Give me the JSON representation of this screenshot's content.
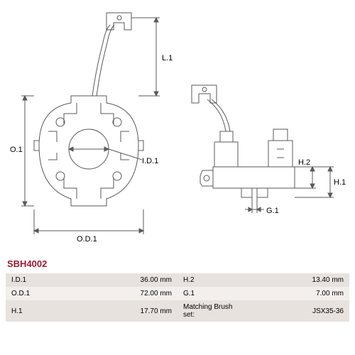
{
  "part_number": "SBH4002",
  "part_number_color": "#a01830",
  "drawing_stroke": "#5a5a5a",
  "line_width": 1,
  "labels": {
    "L1": "L.1",
    "O1": "O.1",
    "ID1": "I.D.1",
    "OD1": "O.D.1",
    "H2": "H.2",
    "H1": "H.1",
    "G1": "G.1"
  },
  "spec_rows": [
    {
      "l_label": "I.D.1",
      "l_value": "36.00 mm",
      "r_label": "H.2",
      "r_value": "13.40 mm",
      "bg": "#e7e2de"
    },
    {
      "l_label": "O.D.1",
      "l_value": "72.00 mm",
      "r_label": "G.1",
      "r_value": "7.00 mm",
      "bg": "#f2efec"
    },
    {
      "l_label": "H.1",
      "l_value": "17.70 mm",
      "r_label": "Matching Brush set:",
      "r_value": "JSX35-36",
      "bg": "#e7e2de"
    }
  ]
}
